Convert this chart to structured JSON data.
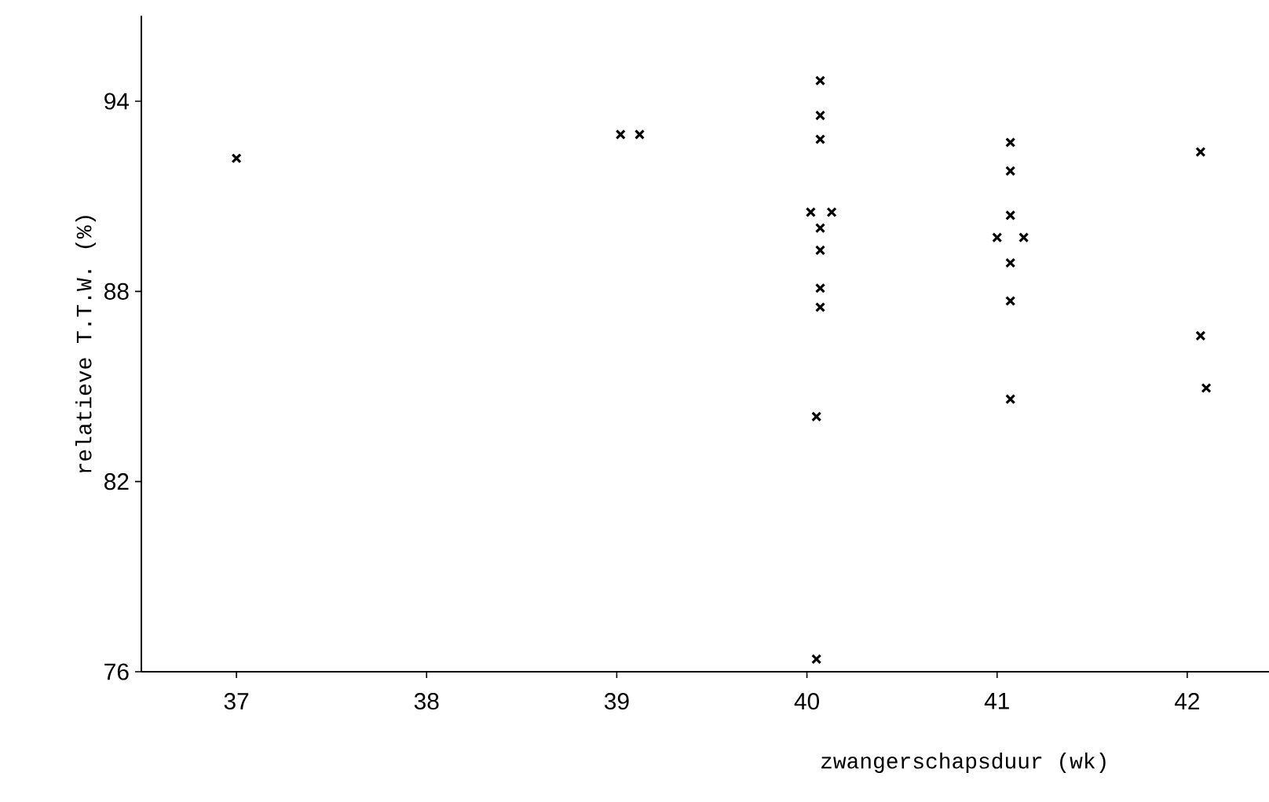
{
  "chart_data": {
    "type": "scatter",
    "xlabel": "zwangerschapsduur (wk)",
    "ylabel": "relatieve T.T.W. (%)",
    "x": [
      37.0,
      39.02,
      39.12,
      40.07,
      40.07,
      40.07,
      40.02,
      40.13,
      40.07,
      40.07,
      40.07,
      40.07,
      40.05,
      40.05,
      41.07,
      41.07,
      41.07,
      41.0,
      41.14,
      41.07,
      41.07,
      41.07,
      42.07,
      42.07,
      42.1
    ],
    "values": [
      92.2,
      92.95,
      92.95,
      94.65,
      93.55,
      92.8,
      90.5,
      90.5,
      90.0,
      89.3,
      88.1,
      87.5,
      84.05,
      76.4,
      92.7,
      91.8,
      90.4,
      89.7,
      89.7,
      88.9,
      87.7,
      84.6,
      92.4,
      86.6,
      84.95
    ],
    "color": "#000000",
    "marker": "cross",
    "grid": false,
    "xlim": [
      36.5,
      42.43
    ],
    "ylim": [
      76,
      96.7
    ],
    "xticks": [
      37,
      38,
      39,
      40,
      41,
      42
    ],
    "yticks": [
      76,
      82,
      88,
      94
    ]
  }
}
